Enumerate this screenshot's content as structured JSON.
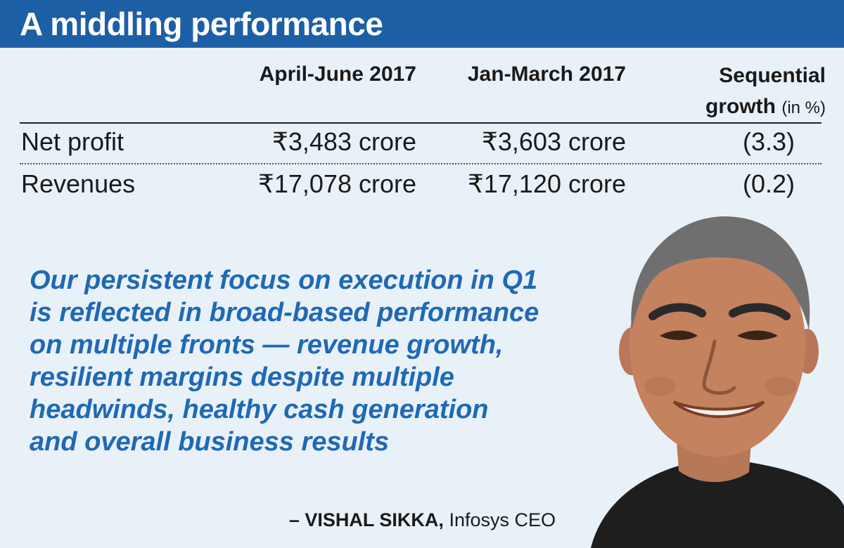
{
  "title": "A middling performance",
  "table": {
    "headers": {
      "col1": "April-June 2017",
      "col2": "Jan-March 2017",
      "col3_line1": "Sequential",
      "col3_line2": "growth",
      "col3_unit": "(in %)"
    },
    "rows": [
      {
        "label": "Net profit",
        "apr_jun": "₹3,483 crore",
        "jan_mar": "₹3,603 crore",
        "growth": "(3.3)"
      },
      {
        "label": "Revenues",
        "apr_jun": "₹17,078 crore",
        "jan_mar": "₹17,120 crore",
        "growth": "(0.2)"
      }
    ]
  },
  "quote": {
    "lines": [
      "Our persistent focus on execution in Q1",
      "is reflected in broad-based performance",
      "on multiple fronts — revenue growth,",
      "resilient margins despite multiple",
      "headwinds, healthy cash generation",
      "and overall business results"
    ],
    "author": "– VISHAL SIKKA,",
    "author_role": "Infosys CEO"
  },
  "colors": {
    "banner": "#1d5fa5",
    "background": "#e9f1f8",
    "quote_text": "#1f69b5"
  }
}
